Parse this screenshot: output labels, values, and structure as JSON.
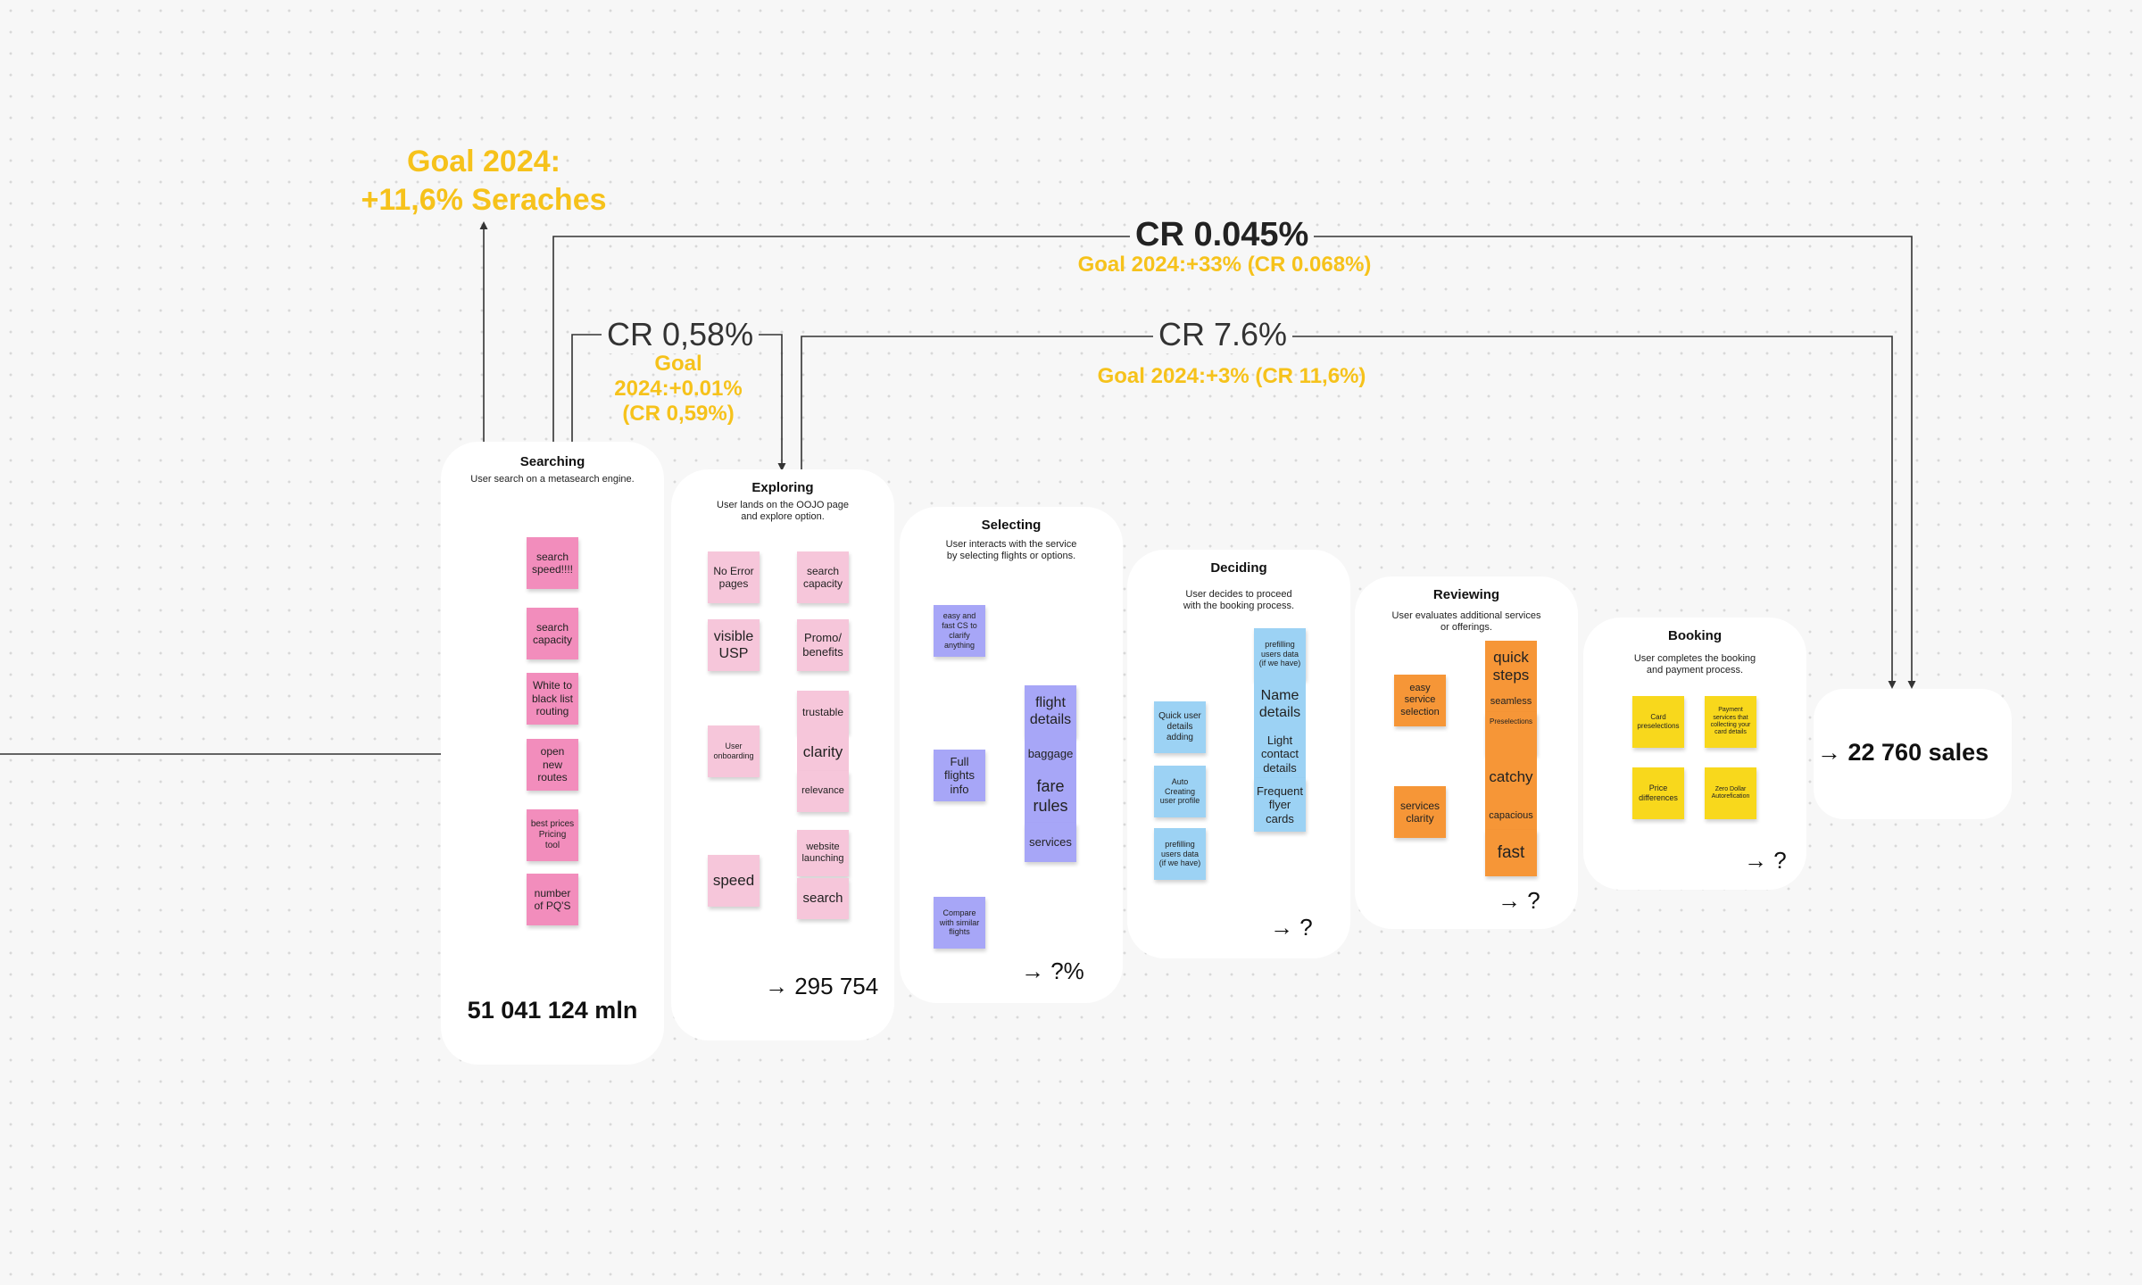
{
  "goals": {
    "search_goal": "Goal 2024:\n+11,6% Seraches",
    "cr_total": "CR 0.045%",
    "cr_total_goal": "Goal 2024:+33%  (CR 0.068%)",
    "cr_explore": "CR 0,58%",
    "cr_explore_goal": "Goal\n2024:+0.01%\n(CR 0,59%)",
    "cr_select": "CR 7.6%",
    "cr_select_goal": "Goal 2024:+3%  (CR 11,6%)"
  },
  "colors": {
    "gold": "#f6c21b",
    "pink": "#f28dbc",
    "light_pink": "#f6c6da",
    "purple": "#a7a6f7",
    "blue": "#9cd2f4",
    "orange": "#f69637",
    "yellow": "#f8d81c"
  },
  "stages": {
    "searching": {
      "title": "Searching",
      "desc": "User search on a metasearch engine.",
      "notes": [
        "search\nspeed!!!!",
        "search\ncapacity",
        "White to\nblack list\nrouting",
        "open\nnew\nroutes",
        "best prices\nPricing\ntool",
        "number\nof PQ'S"
      ],
      "metric": "51 041 124 mln"
    },
    "exploring": {
      "title": "Exploring",
      "desc": "User lands on the OOJO page\nand explore option.",
      "notes": [
        "No Error\npages",
        "search\ncapacity",
        "visible\nUSP",
        "Promo/\nbenefits",
        "User\nonboarding",
        "trustable",
        "clarity",
        "relevance",
        "speed",
        "website\nlaunching",
        "search"
      ],
      "metric": "→ 295 754"
    },
    "selecting": {
      "title": "Selecting",
      "desc": "User interacts with the service\nby selecting flights or options.",
      "notes": [
        "easy and\nfast CS to\nclarify\nanything",
        "Full\nflights\ninfo",
        "Compare\nwith similar\nflights",
        "flight\ndetails",
        "baggage",
        "fare\nrules",
        "services"
      ],
      "metric": "→ ?%"
    },
    "deciding": {
      "title": "Deciding",
      "desc": "User decides to proceed\nwith the booking process.",
      "notes": [
        "Quick user\ndetails\nadding",
        "Auto\nCreating\nuser profile",
        "prefilling\nusers data\n(if we have)",
        "prefilling\nusers data\n(if we have)",
        "Name\ndetails",
        "Light\ncontact\ndetails",
        "Frequent\nflyer\ncards"
      ],
      "metric": "→ ?"
    },
    "reviewing": {
      "title": "Reviewing",
      "desc": "User evaluates additional services\nor offerings.",
      "notes": [
        "easy\nservice\nselection",
        "services\nclarity",
        "quick\nsteps",
        "seamless",
        "Preselections",
        "catchy",
        "capacious",
        "fast"
      ],
      "metric": "→ ?"
    },
    "booking": {
      "title": "Booking",
      "desc": "User completes the booking\nand payment process.",
      "notes": [
        "Card\npreselections",
        "Payment\nservices that\ncollecting your\ncard details",
        "Price\ndifferences",
        "Zero Dollar\nAutorefication"
      ],
      "metric": "→ ?"
    }
  },
  "result": "→ 22 760 sales"
}
